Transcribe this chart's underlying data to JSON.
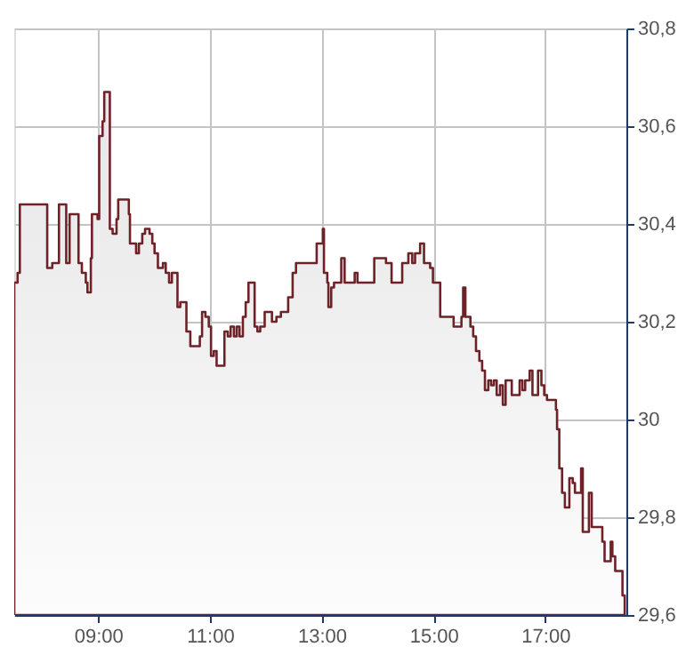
{
  "chart_data": {
    "type": "area",
    "grid": true,
    "line_style": "solid",
    "x": [
      7.5,
      7.56,
      7.6,
      8.09,
      8.18,
      8.3,
      8.43,
      8.49,
      8.65,
      8.71,
      8.78,
      8.81,
      8.87,
      8.89,
      8.99,
      9.02,
      9.08,
      9.11,
      9.21,
      9.26,
      9.33,
      9.36,
      9.55,
      9.57,
      9.68,
      9.73,
      9.79,
      9.84,
      9.92,
      9.97,
      10.01,
      10.07,
      10.16,
      10.21,
      10.27,
      10.32,
      10.42,
      10.47,
      10.58,
      10.65,
      10.82,
      10.86,
      10.92,
      10.98,
      11.02,
      11.07,
      11.12,
      11.26,
      11.32,
      11.37,
      11.43,
      11.48,
      11.53,
      11.59,
      11.64,
      11.69,
      11.8,
      11.85,
      11.9,
      11.98,
      12.06,
      12.11,
      12.19,
      12.27,
      12.35,
      12.4,
      12.48,
      12.54,
      12.91,
      13.02,
      13.04,
      13.1,
      13.12,
      13.17,
      13.22,
      13.35,
      13.41,
      13.59,
      13.64,
      13.94,
      14.15,
      14.25,
      14.36,
      14.44,
      14.55,
      14.62,
      14.67,
      14.76,
      14.83,
      14.94,
      14.99,
      15.12,
      15.36,
      15.4,
      15.5,
      15.53,
      15.57,
      15.66,
      15.71,
      15.76,
      15.82,
      15.87,
      15.92,
      15.98,
      16.03,
      16.08,
      16.13,
      16.19,
      16.24,
      16.29,
      16.4,
      16.54,
      16.59,
      16.64,
      16.72,
      16.77,
      16.87,
      16.93,
      16.98,
      17.03,
      17.19,
      17.21,
      17.25,
      17.3,
      17.35,
      17.43,
      17.49,
      17.53,
      17.64,
      17.67,
      17.78,
      17.83,
      18.02,
      18.06,
      18.17,
      18.2,
      18.25,
      18.38,
      18.42
    ],
    "series": [
      {
        "color": "#6e2228",
        "values": [
          30.28,
          30.3,
          30.44,
          30.31,
          30.32,
          30.44,
          30.32,
          30.42,
          30.32,
          30.3,
          30.28,
          30.26,
          30.33,
          30.42,
          30.41,
          30.58,
          30.61,
          30.67,
          30.39,
          30.38,
          30.41,
          30.45,
          30.42,
          30.36,
          30.34,
          30.36,
          30.38,
          30.39,
          30.38,
          30.36,
          30.34,
          30.31,
          30.32,
          30.3,
          30.28,
          30.3,
          30.23,
          30.24,
          30.18,
          30.15,
          30.17,
          30.22,
          30.21,
          30.19,
          30.13,
          30.14,
          30.11,
          30.18,
          30.17,
          30.19,
          30.17,
          30.19,
          30.17,
          30.21,
          30.24,
          30.28,
          30.19,
          30.18,
          30.19,
          30.22,
          30.22,
          30.2,
          30.21,
          30.22,
          30.22,
          30.25,
          30.3,
          30.32,
          30.36,
          30.39,
          30.3,
          30.28,
          30.23,
          30.27,
          30.28,
          30.33,
          30.28,
          30.3,
          30.28,
          30.33,
          30.32,
          30.28,
          30.28,
          30.32,
          30.34,
          30.32,
          30.34,
          30.36,
          30.32,
          30.31,
          30.28,
          30.21,
          30.19,
          30.19,
          30.21,
          30.27,
          30.21,
          30.19,
          30.17,
          30.14,
          30.12,
          30.1,
          30.06,
          30.08,
          30.07,
          30.08,
          30.05,
          30.07,
          30.03,
          30.08,
          30.05,
          30.08,
          30.06,
          30.08,
          30.1,
          30.05,
          30.1,
          30.07,
          30.05,
          30.04,
          30.02,
          29.98,
          29.9,
          29.85,
          29.82,
          29.88,
          29.87,
          29.85,
          29.9,
          29.77,
          29.85,
          29.78,
          29.75,
          29.71,
          29.75,
          29.72,
          29.69,
          29.64,
          29.64
        ]
      }
    ],
    "xlim": [
      7.5,
      18.45
    ],
    "xticks": [
      {
        "value": 9,
        "label": "09:00"
      },
      {
        "value": 11,
        "label": "11:00"
      },
      {
        "value": 13,
        "label": "13:00"
      },
      {
        "value": 15,
        "label": "15:00"
      },
      {
        "value": 17,
        "label": "17:00"
      }
    ],
    "ylim": [
      29.6,
      30.8
    ],
    "yticks": [
      {
        "value": 29.6,
        "label": "29,6"
      },
      {
        "value": 29.8,
        "label": "29,8"
      },
      30,
      {
        "value": 30.2,
        "label": "30,2"
      },
      {
        "value": 30.4,
        "label": "30,4"
      },
      {
        "value": 30.6,
        "label": "30,6"
      },
      {
        "value": 30.8,
        "label": "30,8"
      }
    ]
  }
}
